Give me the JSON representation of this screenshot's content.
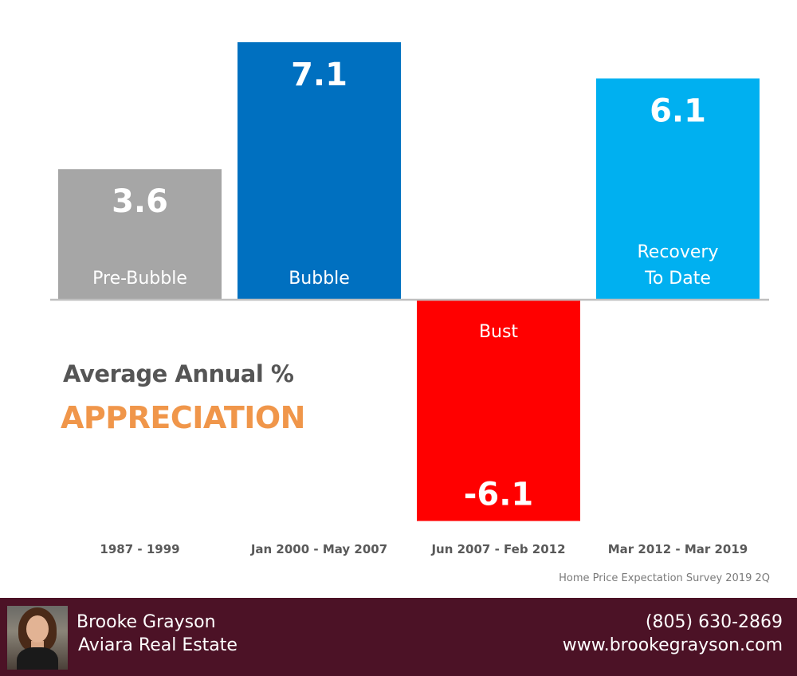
{
  "chart_data": {
    "type": "bar",
    "categories": [
      "1987 - 1999",
      "Jan 2000 - May 2007",
      "Jun 2007 - Feb 2012",
      "Mar 2012 - Mar 2019"
    ],
    "bar_labels": [
      [
        "Pre-Bubble"
      ],
      [
        "Bubble"
      ],
      [
        "Bust"
      ],
      [
        "Recovery",
        "To Date"
      ]
    ],
    "values": [
      3.6,
      7.1,
      -6.1,
      6.1
    ],
    "value_labels": [
      "3.6",
      "7.1",
      "-6.1",
      "6.1"
    ],
    "colors": [
      "#a6a6a6",
      "#0070c0",
      "#ff0000",
      "#00b0f0"
    ],
    "title": "Average Annual %",
    "subtitle": "APPRECIATION",
    "xlabel": "",
    "ylabel": "",
    "ylim": [
      -6.1,
      7.1
    ],
    "grid": false,
    "baseline_color": "#bfbfbf"
  },
  "source": "Home Price Expectation Survey 2019 2Q",
  "footer": {
    "name": "Brooke Grayson",
    "company": "Aviara Real Estate",
    "phone": "(805) 630-2869",
    "website": "www.brookegrayson.com",
    "background_color": "#4c1226"
  }
}
